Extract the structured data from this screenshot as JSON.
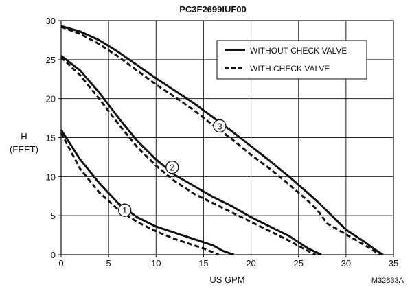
{
  "chart_data": {
    "type": "line",
    "title": "PC3F2699IUF00",
    "xlabel": "US GPM",
    "ylabel_line1": "H",
    "ylabel_line2": "(FEET)",
    "xlim": [
      0,
      35
    ],
    "ylim": [
      0,
      30
    ],
    "xticks": [
      0,
      5,
      10,
      15,
      20,
      25,
      30,
      35
    ],
    "yticks": [
      0,
      5,
      10,
      15,
      20,
      25,
      30
    ],
    "grid": true,
    "legend_position": "top-right",
    "legend": {
      "solid_label": "WITHOUT CHECK VALVE",
      "dashed_label": "WITH CHECK VALVE"
    },
    "footer_code": "M32833A",
    "series": [
      {
        "id": "1",
        "style": "solid",
        "x": [
          0,
          2,
          4,
          6,
          8,
          10,
          12,
          14,
          16,
          17,
          18.2
        ],
        "y": [
          16,
          12.2,
          9.2,
          6.6,
          4.8,
          3.6,
          2.8,
          2.0,
          1.2,
          0.5,
          0
        ]
      },
      {
        "id": "1",
        "style": "dashed",
        "x": [
          0,
          2,
          4,
          6,
          8,
          10,
          12,
          14,
          15,
          16,
          16.6
        ],
        "y": [
          15.6,
          11.0,
          8.0,
          5.8,
          4.2,
          3.0,
          2.0,
          1.2,
          0.8,
          0.3,
          0
        ]
      },
      {
        "id": "2",
        "style": "solid",
        "x": [
          0,
          2,
          4,
          6,
          8,
          10,
          12,
          14,
          16,
          18,
          20,
          22,
          24,
          26,
          27.4
        ],
        "y": [
          25.5,
          23.6,
          20.8,
          17.6,
          14.6,
          12.2,
          10.2,
          8.8,
          7.4,
          6.2,
          4.8,
          3.6,
          2.4,
          0.8,
          0
        ]
      },
      {
        "id": "2",
        "style": "dashed",
        "x": [
          0,
          2,
          4,
          6,
          8,
          10,
          12,
          14,
          16,
          18,
          20,
          22,
          24,
          25.5,
          26.8
        ],
        "y": [
          25.3,
          23.0,
          20.0,
          16.8,
          13.8,
          11.4,
          9.4,
          7.8,
          6.6,
          5.4,
          4.2,
          3.0,
          1.8,
          0.8,
          0
        ]
      },
      {
        "id": "3",
        "style": "solid",
        "x": [
          0,
          2,
          4,
          6,
          8,
          10,
          12,
          14,
          16,
          18,
          20,
          22,
          24,
          26,
          27,
          28,
          29,
          30,
          31,
          32,
          33,
          33.9
        ],
        "y": [
          29.3,
          28.6,
          27.5,
          26.0,
          24.3,
          22.6,
          21.0,
          19.4,
          17.6,
          15.8,
          13.9,
          12.0,
          10.0,
          7.9,
          6.8,
          5.6,
          4.4,
          3.2,
          2.4,
          1.6,
          0.7,
          0
        ]
      },
      {
        "id": "3",
        "style": "dashed",
        "x": [
          0,
          2,
          4,
          6,
          8,
          10,
          12,
          14,
          16,
          18,
          20,
          22,
          24,
          26,
          27,
          28,
          30,
          32,
          33.6
        ],
        "y": [
          29.2,
          28.3,
          27.0,
          25.4,
          23.6,
          21.8,
          20.2,
          18.5,
          16.6,
          14.8,
          12.8,
          11.0,
          9.0,
          6.9,
          5.7,
          4.0,
          2.6,
          1.2,
          0
        ]
      }
    ],
    "markers": [
      {
        "label": "1",
        "x": 6.7,
        "y": 5.7
      },
      {
        "label": "2",
        "x": 11.7,
        "y": 11.2
      },
      {
        "label": "3",
        "x": 16.7,
        "y": 16.5
      }
    ]
  }
}
